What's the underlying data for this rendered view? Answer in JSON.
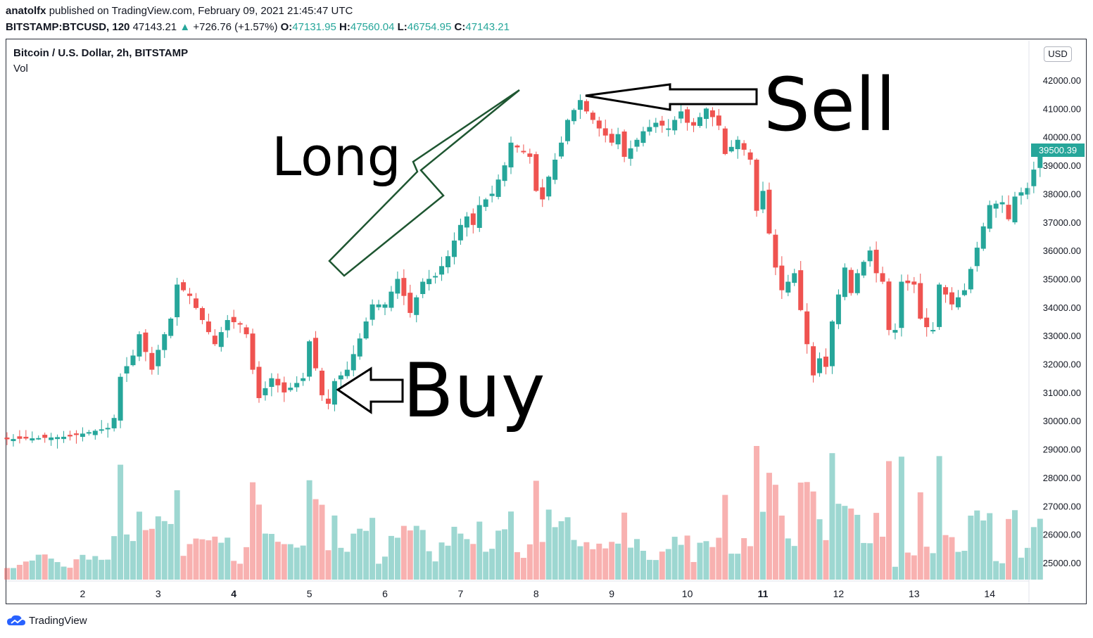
{
  "header": {
    "publisher": "anatolfx",
    "published_text": "published on TradingView.com, February 09, 2021 21:45:47 UTC",
    "symbol": "BITSTAMP:BTCUSD, 120",
    "last": "47143.21",
    "change": "+726.76 (+1.57%)",
    "open_label": "O:",
    "open": "47131.95",
    "high_label": "H:",
    "high": "47560.04",
    "low_label": "L:",
    "low": "46754.95",
    "close_label": "C:",
    "close": "47143.21"
  },
  "legend": {
    "title": "Bitcoin / U.S. Dollar, 2h, BITSTAMP",
    "volume": "Vol"
  },
  "currency": "USD",
  "last_price_tag": "39500.39",
  "footer": {
    "brand": "TradingView"
  },
  "annotations": {
    "long": "Long",
    "sell": "Sell",
    "buy": "Buy"
  },
  "colors": {
    "up": "#26a69a",
    "down": "#ef5350",
    "vol_up": "#26a69a",
    "vol_down": "#ef5350",
    "arrow_long": "#1e5631"
  },
  "chart_data": {
    "type": "candlestick",
    "title": "Bitcoin / U.S. Dollar, 2h, BITSTAMP",
    "ylim": [
      24300,
      43300
    ],
    "y_ticks": [
      "25000.00",
      "26000.00",
      "27000.00",
      "28000.00",
      "29000.00",
      "30000.00",
      "31000.00",
      "32000.00",
      "33000.00",
      "34000.00",
      "35000.00",
      "36000.00",
      "37000.00",
      "38000.00",
      "39000.00",
      "40000.00",
      "41000.00",
      "42000.00"
    ],
    "y_tick_values": [
      25000,
      26000,
      27000,
      28000,
      29000,
      30000,
      31000,
      32000,
      33000,
      34000,
      35000,
      36000,
      37000,
      38000,
      39000,
      40000,
      41000,
      42000
    ],
    "x_ticks": [
      "2",
      "3",
      "4",
      "5",
      "6",
      "7",
      "8",
      "9",
      "10",
      "11",
      "12",
      "13",
      "14"
    ],
    "bold_x_ticks": [
      "4",
      "11"
    ],
    "x_tick_index": [
      12,
      24,
      36,
      48,
      60,
      72,
      84,
      96,
      108,
      120,
      132,
      144,
      156
    ],
    "close_path": [
      [
        0,
        29350
      ],
      [
        6,
        29400
      ],
      [
        10,
        29450
      ],
      [
        16,
        29750
      ],
      [
        17,
        30100
      ],
      [
        18,
        31550
      ],
      [
        20,
        32300
      ],
      [
        21,
        33050
      ],
      [
        23,
        31800
      ],
      [
        24,
        32500
      ],
      [
        26,
        33600
      ],
      [
        27,
        34800
      ],
      [
        29,
        34400
      ],
      [
        31,
        33550
      ],
      [
        33,
        32700
      ],
      [
        35,
        33550
      ],
      [
        37,
        33400
      ],
      [
        38,
        33050
      ],
      [
        39,
        31800
      ],
      [
        40,
        30800
      ],
      [
        42,
        31500
      ],
      [
        44,
        31000
      ],
      [
        47,
        31500
      ],
      [
        48,
        32800
      ],
      [
        50,
        30900
      ],
      [
        51,
        30600
      ],
      [
        52,
        31400
      ],
      [
        54,
        31800
      ],
      [
        56,
        32900
      ],
      [
        58,
        34100
      ],
      [
        60,
        34100
      ],
      [
        62,
        35000
      ],
      [
        64,
        33800
      ],
      [
        66,
        34900
      ],
      [
        68,
        35100
      ],
      [
        70,
        35800
      ],
      [
        72,
        36900
      ],
      [
        73,
        37200
      ],
      [
        74,
        36900
      ],
      [
        75,
        37600
      ],
      [
        77,
        38000
      ],
      [
        79,
        39000
      ],
      [
        80,
        39800
      ],
      [
        83,
        39300
      ],
      [
        84,
        38100
      ],
      [
        85,
        37800
      ],
      [
        86,
        38600
      ],
      [
        88,
        39800
      ],
      [
        89,
        40600
      ],
      [
        91,
        41300
      ],
      [
        92,
        40900
      ],
      [
        94,
        40300
      ],
      [
        96,
        39800
      ],
      [
        97,
        40100
      ],
      [
        98,
        39300
      ],
      [
        99,
        39600
      ],
      [
        101,
        40200
      ],
      [
        103,
        40500
      ],
      [
        105,
        40300
      ],
      [
        107,
        40900
      ],
      [
        108,
        40500
      ],
      [
        109,
        40400
      ],
      [
        111,
        41000
      ],
      [
        113,
        40400
      ],
      [
        114,
        39400
      ],
      [
        116,
        39900
      ],
      [
        118,
        39200
      ],
      [
        119,
        37400
      ],
      [
        120,
        38100
      ],
      [
        121,
        36600
      ],
      [
        122,
        35400
      ],
      [
        123,
        34600
      ],
      [
        125,
        35200
      ],
      [
        126,
        33900
      ],
      [
        127,
        32700
      ],
      [
        128,
        31600
      ],
      [
        129,
        32200
      ],
      [
        130,
        31900
      ],
      [
        131,
        33500
      ],
      [
        133,
        35400
      ],
      [
        134,
        34500
      ],
      [
        135,
        35200
      ],
      [
        137,
        36000
      ],
      [
        138,
        35200
      ],
      [
        139,
        34900
      ],
      [
        140,
        33200
      ],
      [
        141,
        33200
      ],
      [
        142,
        34900
      ],
      [
        144,
        34800
      ],
      [
        145,
        33600
      ],
      [
        146,
        33300
      ],
      [
        147,
        33200
      ],
      [
        148,
        34800
      ],
      [
        150,
        34100
      ],
      [
        152,
        34600
      ],
      [
        154,
        36100
      ],
      [
        156,
        37600
      ],
      [
        158,
        37700
      ],
      [
        159,
        37100
      ],
      [
        160,
        37900
      ],
      [
        162,
        38200
      ],
      [
        164,
        39500
      ]
    ],
    "volume_note": "volume bars, red = down candle, green = up candle"
  }
}
